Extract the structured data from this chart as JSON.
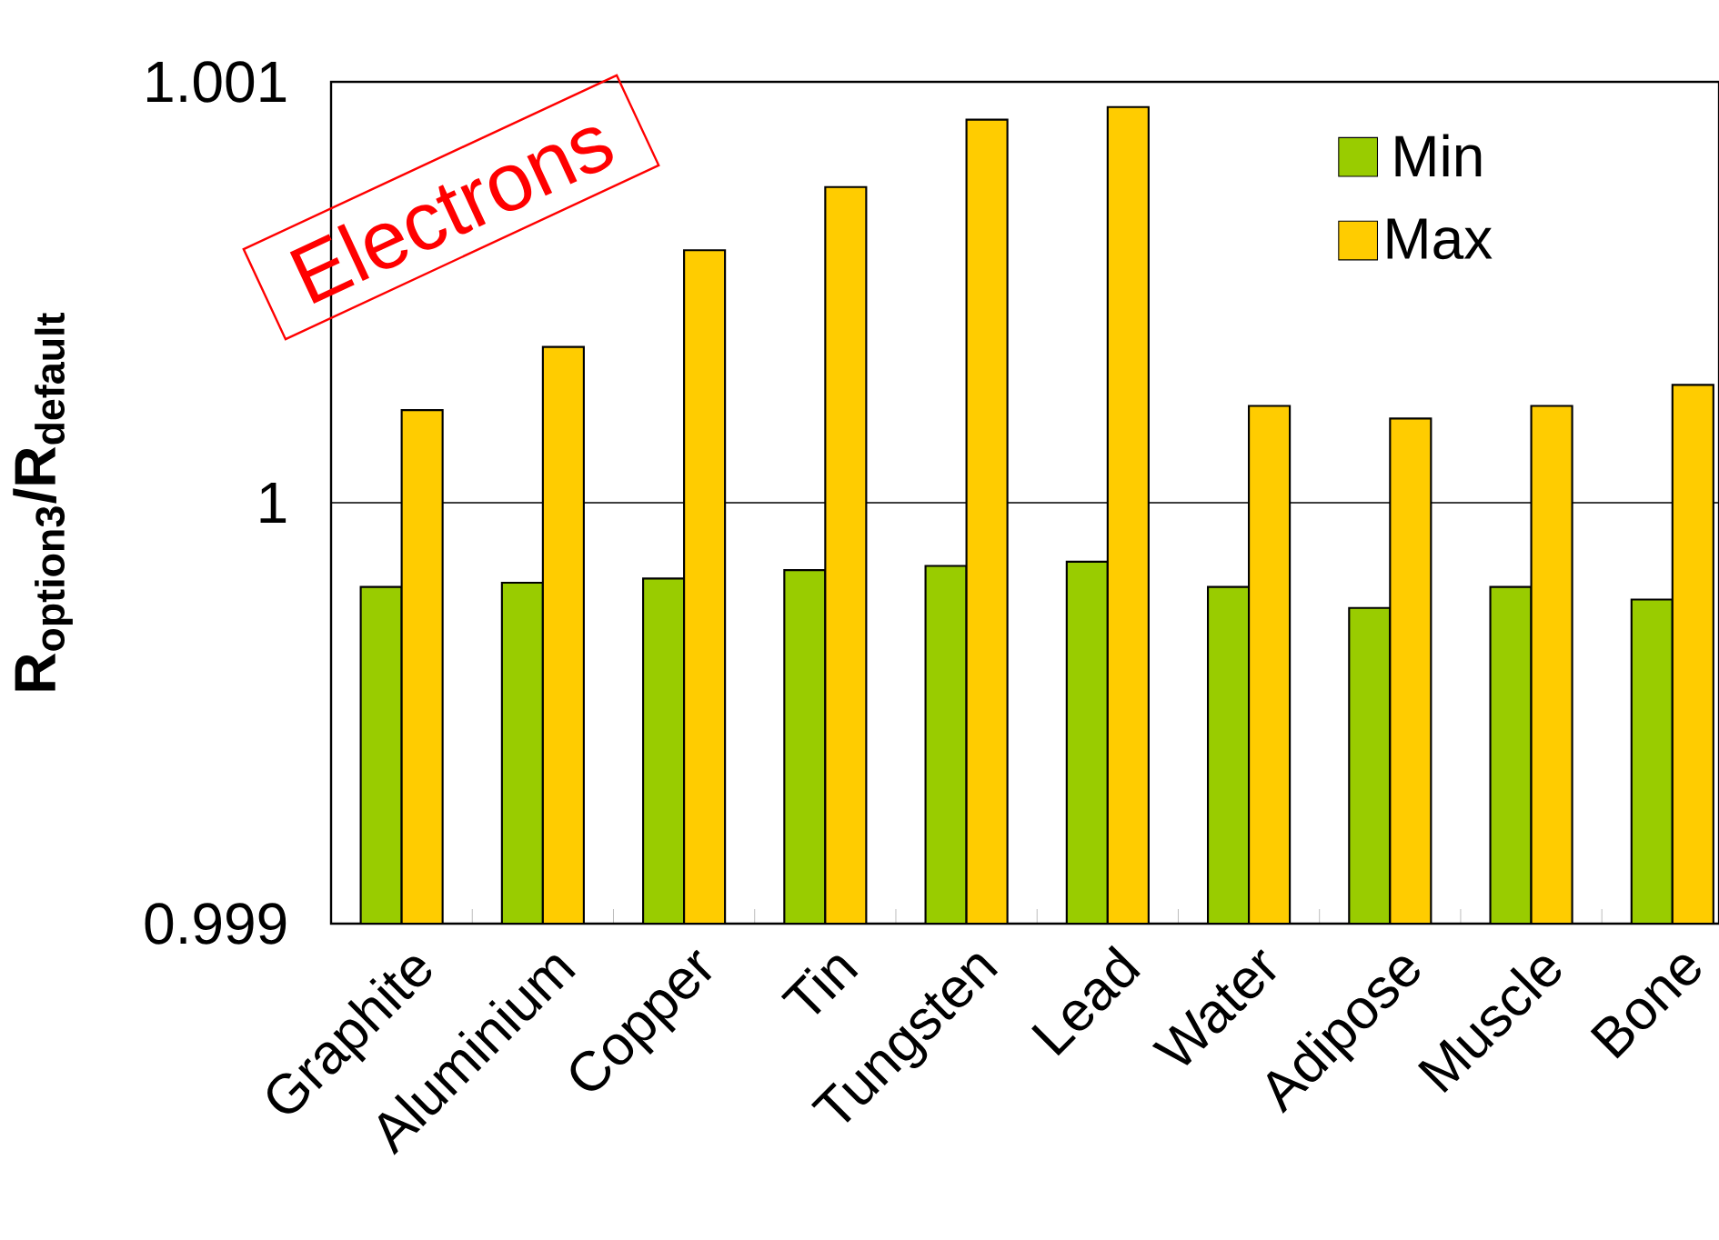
{
  "chart_data": {
    "type": "bar",
    "categories": [
      "Graphite",
      "Aluminium",
      "Copper",
      "Tin",
      "Tungsten",
      "Lead",
      "Water",
      "Adipose",
      "Muscle",
      "Bone"
    ],
    "series": [
      {
        "name": "Min",
        "color": "#99cc00",
        "values": [
          0.9998,
          0.99981,
          0.99982,
          0.99984,
          0.99985,
          0.99986,
          0.9998,
          0.99975,
          0.9998,
          0.99977
        ]
      },
      {
        "name": "Max",
        "color": "#ffcc00",
        "values": [
          1.00022,
          1.00037,
          1.0006,
          1.00075,
          1.00091,
          1.00094,
          1.00023,
          1.0002,
          1.00023,
          1.00028
        ]
      }
    ],
    "ylabel": "R$_{option3}$/R$_{default}$",
    "ylim": [
      0.999,
      1.001
    ],
    "yticks": [
      0.999,
      1,
      1.001
    ],
    "grid": "y",
    "legend": "top right",
    "annotations": [
      "Electrons"
    ]
  }
}
